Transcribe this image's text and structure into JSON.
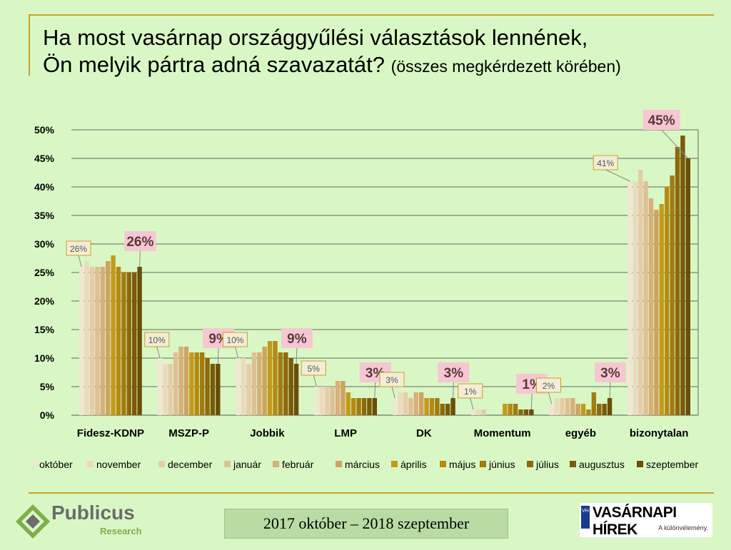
{
  "title": {
    "line1": "Ha most vasárnap országgyűlési választások lennének,",
    "line2": "Ön melyik pártra adná szavazatát?",
    "note": "(összes megkérdezett körében)"
  },
  "footer": {
    "period": "2017 október – 2018 szeptember",
    "publicus_name": "Publicus",
    "publicus_sub": "Research",
    "vh_badge": "VH",
    "vh_name": "VASÁRNAPI HÍREK",
    "vh_slogan": "A különvélemény."
  },
  "chart_data": {
    "type": "bar",
    "ylim": [
      0,
      50
    ],
    "y_ticks": [
      "0%",
      "5%",
      "10%",
      "15%",
      "20%",
      "25%",
      "30%",
      "35%",
      "40%",
      "45%",
      "50%"
    ],
    "grid": true,
    "legend_position": "bottom",
    "categories": [
      "Fidesz-KDNP",
      "MSZP-P",
      "Jobbik",
      "LMP",
      "DK",
      "Momentum",
      "egyéb",
      "bizonytalan"
    ],
    "months": [
      "október",
      "november",
      "december",
      "január",
      "február",
      "március",
      "április",
      "május",
      "június",
      "július",
      "augusztus",
      "szeptember"
    ],
    "month_colors": [
      "#f0e6d2",
      "#ecd9bf",
      "#e6cca9",
      "#dfc095",
      "#d7b07a",
      "#cfa361",
      "#c49a1c",
      "#b48b12",
      "#a27b0e",
      "#8c690c",
      "#7a5a08",
      "#6a4e07"
    ],
    "values": [
      [
        26,
        27,
        26,
        26,
        26,
        27,
        28,
        26,
        25,
        25,
        25,
        26
      ],
      [
        10,
        9,
        9,
        11,
        12,
        12,
        11,
        11,
        11,
        10,
        9,
        9
      ],
      [
        10,
        10,
        9,
        11,
        11,
        12,
        13,
        13,
        11,
        11,
        10,
        9
      ],
      [
        5,
        5,
        5,
        5,
        6,
        6,
        4,
        3,
        3,
        3,
        3,
        3
      ],
      [
        3,
        4,
        4,
        3,
        4,
        4,
        3,
        3,
        3,
        2,
        2,
        3
      ],
      [
        1,
        1,
        1,
        0,
        0,
        0,
        2,
        2,
        2,
        1,
        1,
        1
      ],
      [
        2,
        3,
        3,
        3,
        3,
        2,
        2,
        1,
        4,
        2,
        2,
        3
      ],
      [
        41,
        41,
        43,
        41,
        38,
        36,
        37,
        40,
        42,
        47,
        49,
        45
      ]
    ],
    "first_labels": [
      "26%",
      "10%",
      "10%",
      "5%",
      "3%",
      "1%",
      "2%",
      "41%"
    ],
    "last_labels": [
      "26%",
      "9%",
      "9%",
      "3%",
      "3%",
      "1%",
      "3%",
      "45%"
    ]
  }
}
